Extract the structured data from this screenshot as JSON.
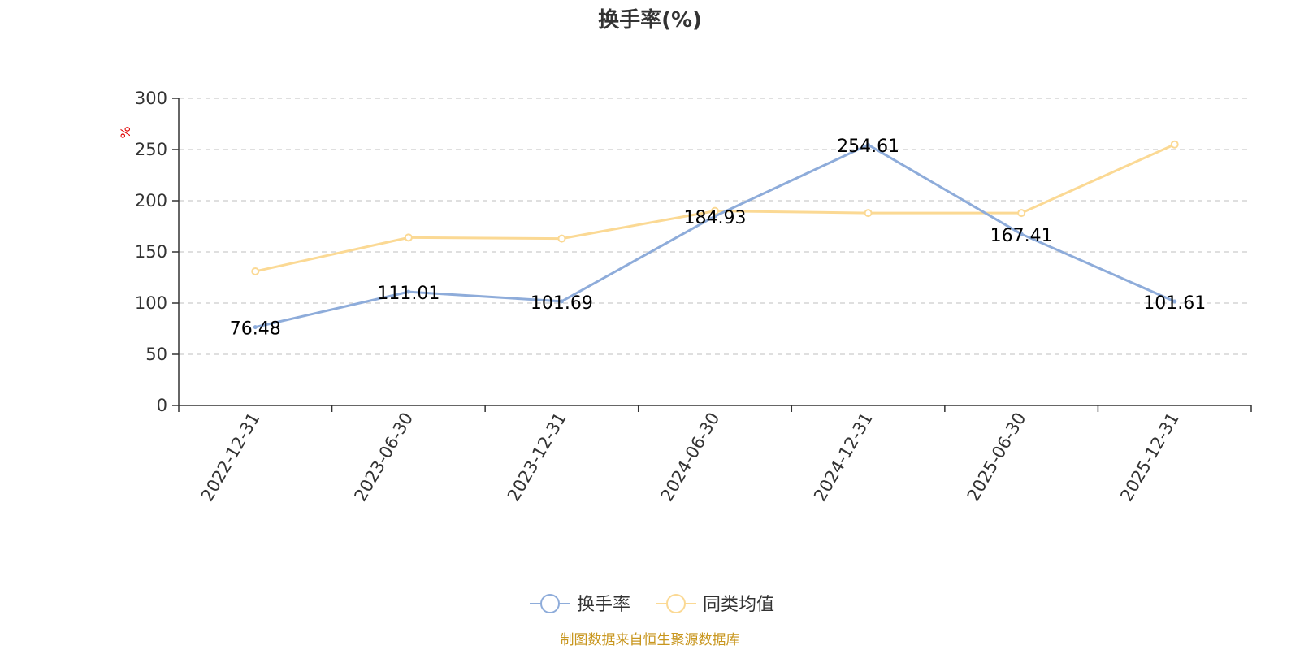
{
  "chart_data": {
    "type": "line",
    "title": "换手率(%)",
    "ylabel": "%",
    "xlabel": "",
    "ylim": [
      0,
      300
    ],
    "yticks": [
      0,
      50,
      100,
      150,
      200,
      250,
      300
    ],
    "grid": true,
    "legend_position": "bottom-center",
    "categories": [
      "2022-12-31",
      "2023-06-30",
      "2023-12-31",
      "2024-06-30",
      "2024-12-31",
      "2025-06-30",
      "2025-12-31"
    ],
    "series": [
      {
        "name": "换手率",
        "color": "#8eacda",
        "values": [
          76.48,
          111.01,
          101.69,
          184.93,
          254.61,
          167.41,
          101.61
        ],
        "labels": [
          "76.48",
          "111.01",
          "101.69",
          "184.93",
          "254.61",
          "167.41",
          "101.61"
        ]
      },
      {
        "name": "同类均值",
        "color": "#fbd994",
        "values": [
          131,
          164,
          163,
          190,
          188,
          188,
          255
        ]
      }
    ]
  },
  "source_text": "制图数据来自恒生聚源数据库"
}
